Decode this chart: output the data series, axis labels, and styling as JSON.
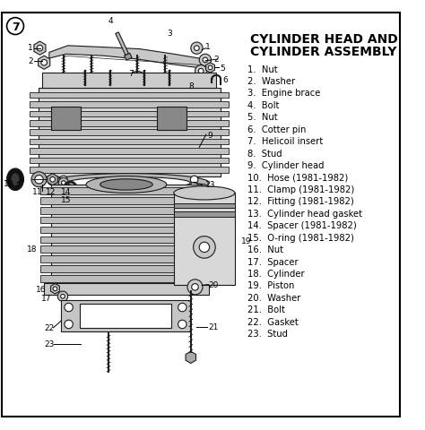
{
  "title_line1": "CYLINDER HEAD AND",
  "title_line2": "CYLINDER ASSEMBLY",
  "page_number": "7",
  "background_color": "#ffffff",
  "border_color": "#000000",
  "text_color": "#000000",
  "parts_list": [
    "1.  Nut",
    "2.  Washer",
    "3.  Engine brace",
    "4.  Bolt",
    "5.  Nut",
    "6.  Cotter pin",
    "7.  Helicoil insert",
    "8.  Stud",
    "9.  Cylinder head",
    "10.  Hose (1981-1982)",
    "11.  Clamp (1981-1982)",
    "12.  Fitting (1981-1982)",
    "13.  Cylinder head gasket",
    "14.  Spacer (1981-1982)",
    "15.  O-ring (1981-1982)",
    "16.  Nut",
    "17.  Spacer",
    "18.  Cylinder",
    "19.  Piston",
    "20.  Washer",
    "21.  Bolt",
    "22.  Gasket",
    "23.  Stud"
  ],
  "figsize": [
    4.74,
    4.81
  ],
  "dpi": 100
}
